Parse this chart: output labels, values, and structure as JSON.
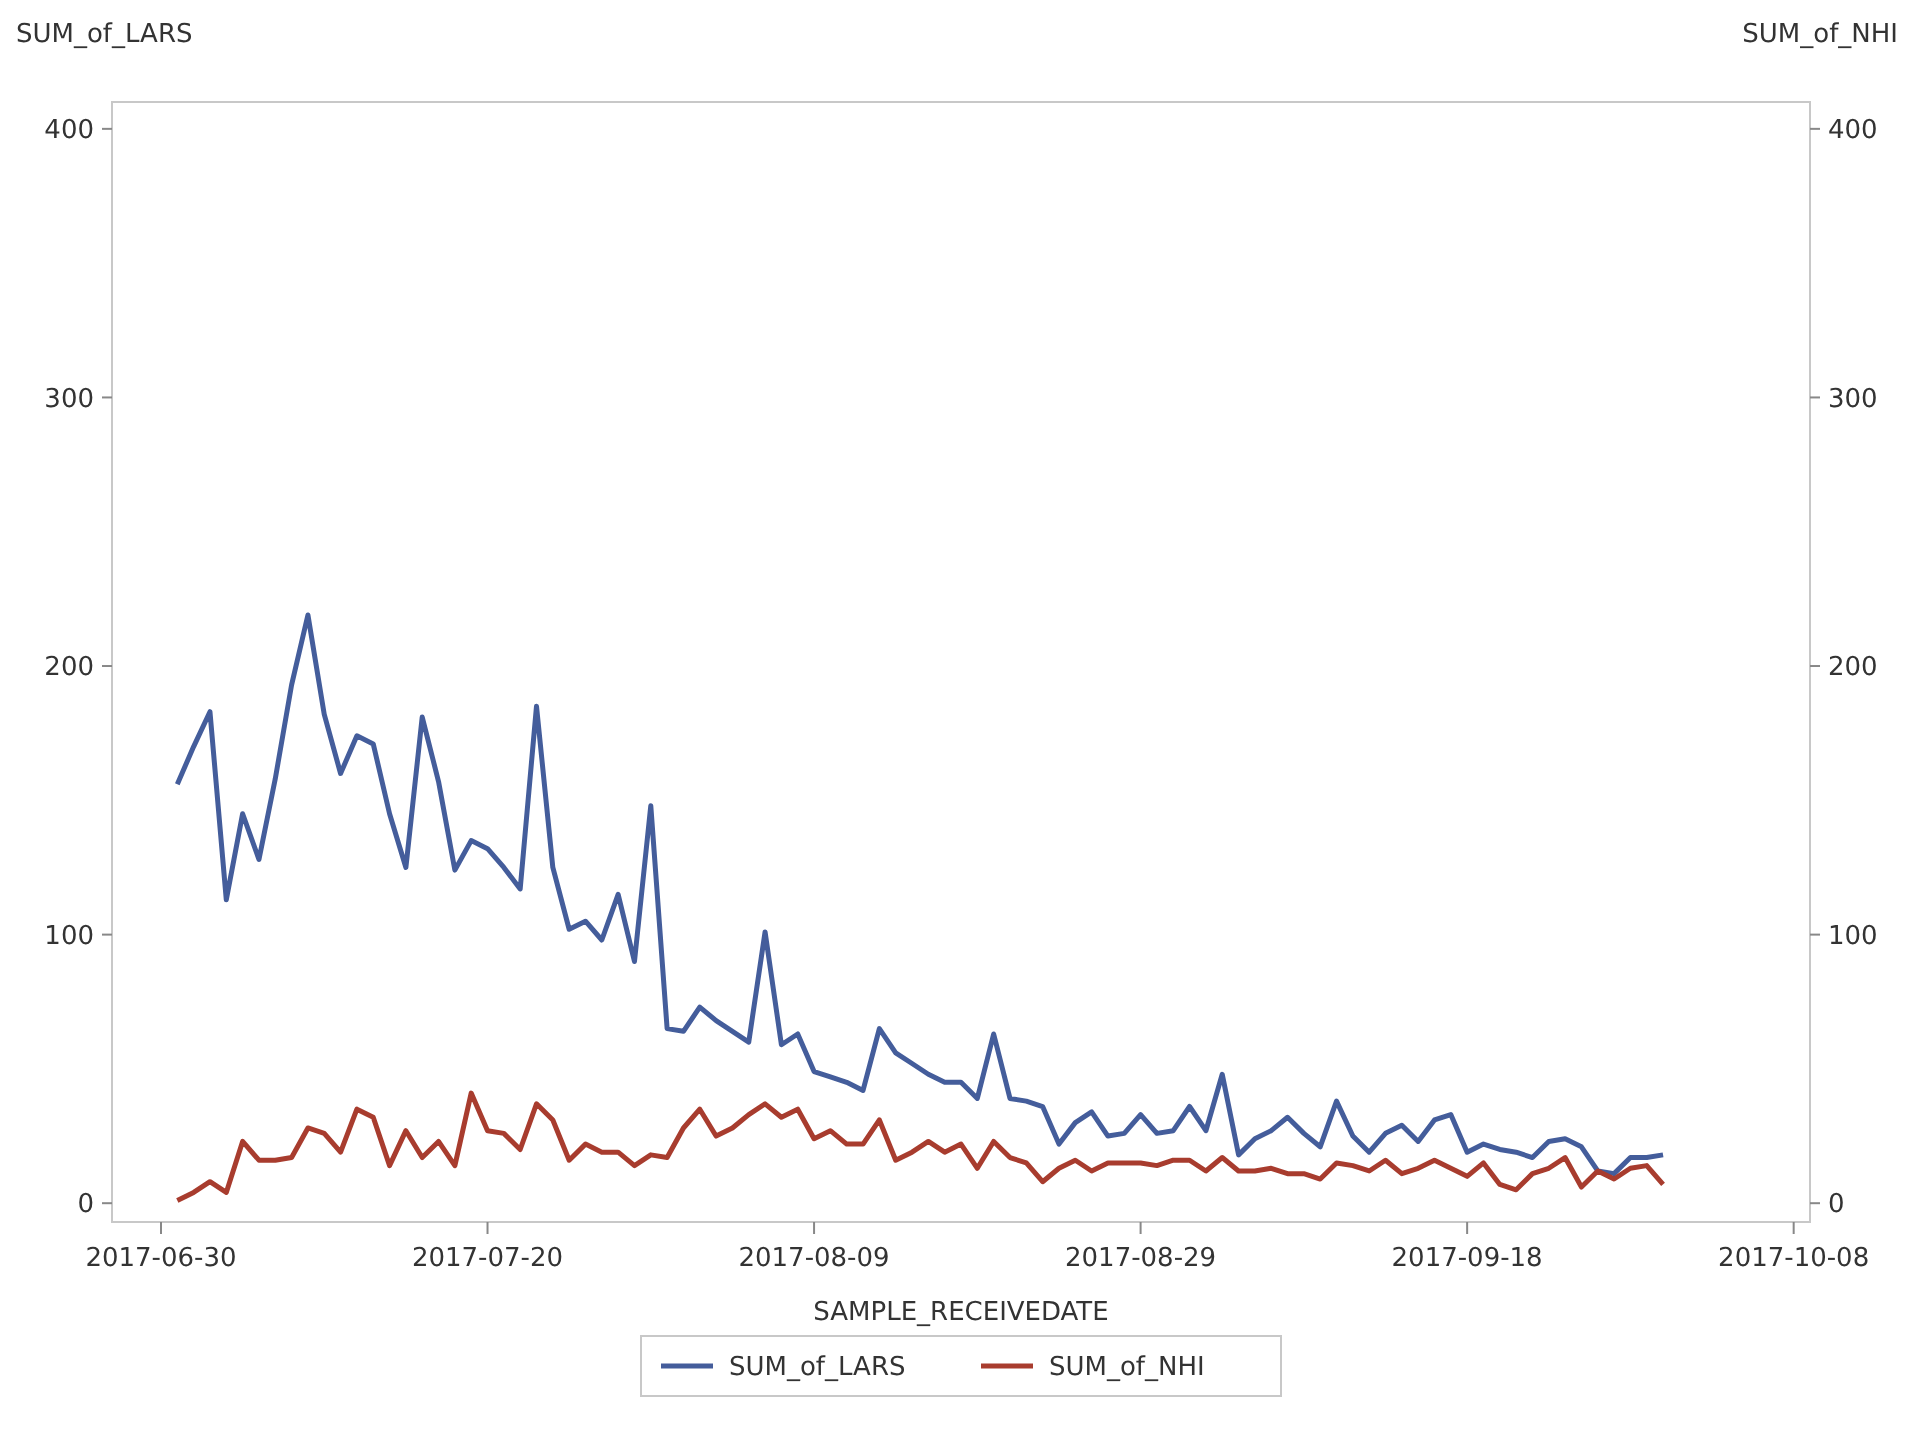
{
  "chart_data": {
    "type": "line",
    "xlabel": "SAMPLE_RECEIVEDATE",
    "ylabel": "SUM_of_LARS",
    "y2label": "SUM_of_NHI",
    "x": [
      "2017-07-01",
      "2017-07-02",
      "2017-07-03",
      "2017-07-04",
      "2017-07-05",
      "2017-07-06",
      "2017-07-07",
      "2017-07-08",
      "2017-07-09",
      "2017-07-10",
      "2017-07-11",
      "2017-07-12",
      "2017-07-13",
      "2017-07-14",
      "2017-07-15",
      "2017-07-16",
      "2017-07-17",
      "2017-07-18",
      "2017-07-19",
      "2017-07-20",
      "2017-07-21",
      "2017-07-22",
      "2017-07-23",
      "2017-07-24",
      "2017-07-25",
      "2017-07-26",
      "2017-07-27",
      "2017-07-28",
      "2017-07-29",
      "2017-07-30",
      "2017-07-31",
      "2017-08-01",
      "2017-08-02",
      "2017-08-03",
      "2017-08-04",
      "2017-08-05",
      "2017-08-06",
      "2017-08-07",
      "2017-08-08",
      "2017-08-09",
      "2017-08-10",
      "2017-08-11",
      "2017-08-12",
      "2017-08-13",
      "2017-08-14",
      "2017-08-15",
      "2017-08-16",
      "2017-08-17",
      "2017-08-18",
      "2017-08-19",
      "2017-08-20",
      "2017-08-21",
      "2017-08-22",
      "2017-08-23",
      "2017-08-24",
      "2017-08-25",
      "2017-08-26",
      "2017-08-27",
      "2017-08-28",
      "2017-08-29",
      "2017-08-30",
      "2017-08-31",
      "2017-09-01",
      "2017-09-02",
      "2017-09-03",
      "2017-09-04",
      "2017-09-05",
      "2017-09-06",
      "2017-09-07",
      "2017-09-08",
      "2017-09-09",
      "2017-09-10",
      "2017-09-11",
      "2017-09-12",
      "2017-09-13",
      "2017-09-14",
      "2017-09-15",
      "2017-09-16",
      "2017-09-17",
      "2017-09-18",
      "2017-09-19",
      "2017-09-20",
      "2017-09-21",
      "2017-09-22",
      "2017-09-23",
      "2017-09-24",
      "2017-09-25",
      "2017-09-26",
      "2017-09-27",
      "2017-09-28",
      "2017-09-29",
      "2017-09-30"
    ],
    "series": [
      {
        "name": "SUM_of_LARS",
        "color": "#445d9b",
        "values": [
          156,
          170,
          183,
          113,
          145,
          128,
          158,
          193,
          219,
          182,
          160,
          174,
          171,
          145,
          125,
          181,
          157,
          124,
          135,
          132,
          125,
          117,
          185,
          125,
          102,
          105,
          98,
          115,
          90,
          148,
          65,
          64,
          73,
          68,
          64,
          60,
          101,
          59,
          63,
          49,
          47,
          45,
          42,
          65,
          56,
          52,
          48,
          45,
          45,
          39,
          63,
          39,
          38,
          36,
          22,
          30,
          34,
          25,
          26,
          33,
          26,
          27,
          36,
          27,
          48,
          18,
          24,
          27,
          32,
          26,
          21,
          38,
          25,
          19,
          26,
          29,
          23,
          31,
          33,
          19,
          22,
          20,
          19,
          17,
          23,
          24,
          21,
          12,
          11,
          17,
          17,
          18
        ]
      },
      {
        "name": "SUM_of_NHI",
        "color": "#a83c2e",
        "values": [
          1,
          4,
          8,
          4,
          23,
          16,
          16,
          17,
          28,
          26,
          19,
          35,
          32,
          14,
          27,
          17,
          23,
          14,
          41,
          27,
          26,
          20,
          37,
          31,
          16,
          22,
          19,
          19,
          14,
          18,
          17,
          28,
          35,
          25,
          28,
          33,
          37,
          32,
          35,
          24,
          27,
          22,
          22,
          31,
          16,
          19,
          23,
          19,
          22,
          13,
          23,
          17,
          15,
          8,
          13,
          16,
          12,
          15,
          15,
          15,
          14,
          16,
          16,
          12,
          17,
          12,
          12,
          13,
          11,
          11,
          9,
          15,
          14,
          12,
          16,
          11,
          13,
          16,
          13,
          10,
          15,
          7,
          5,
          11,
          13,
          17,
          6,
          12,
          9,
          13,
          14,
          7
        ]
      }
    ],
    "xlim": [
      "2017-06-27",
      "2017-10-09"
    ],
    "xticks": [
      "2017-06-30",
      "2017-07-20",
      "2017-08-09",
      "2017-08-29",
      "2017-09-18",
      "2017-10-08"
    ],
    "ylim": [
      -7,
      410
    ],
    "yticks": [
      0,
      100,
      200,
      300,
      400
    ],
    "y2lim": [
      -7,
      410
    ],
    "y2ticks": [
      0,
      100,
      200,
      300,
      400
    ],
    "grid": false,
    "legend": "bottom",
    "line_style": "solid"
  }
}
